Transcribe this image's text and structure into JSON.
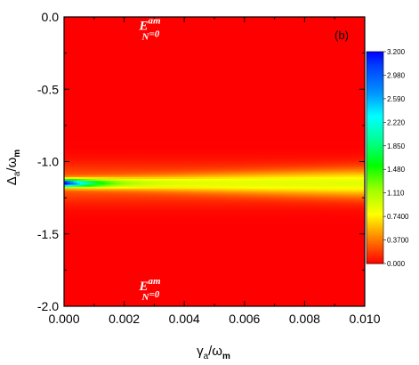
{
  "chart_data": {
    "type": "heatmap",
    "panel_label": "(b)",
    "xlabel": {
      "main": "γ",
      "sub": "a",
      "sep": "/ω",
      "sub2": "m"
    },
    "ylabel": {
      "main": "Δ",
      "sub": "a",
      "sep": "/ω",
      "sub2": "m"
    },
    "xlim": [
      0.0,
      0.01
    ],
    "ylim": [
      -2.0,
      0.0
    ],
    "x_ticks": [
      "0.000",
      "0.002",
      "0.004",
      "0.006",
      "0.008",
      "0.010"
    ],
    "y_ticks": [
      "0.0",
      "-0.5",
      "-1.0",
      "-1.5",
      "-2.0"
    ],
    "x_tick_values": [
      0.0,
      0.002,
      0.004,
      0.006,
      0.008,
      0.01
    ],
    "y_tick_values": [
      0.0,
      -0.5,
      -1.0,
      -1.5,
      -2.0
    ],
    "colorbar": {
      "min": 0.0,
      "max": 3.2,
      "labels": [
        "3.200",
        "2.980",
        "2.590",
        "2.220",
        "1.850",
        "1.480",
        "1.110",
        "0.7400",
        "0.3700",
        "0.000"
      ],
      "stops": [
        {
          "v": 0.0,
          "color": "#ff0000"
        },
        {
          "v": 0.37,
          "color": "#ff7f00"
        },
        {
          "v": 0.74,
          "color": "#ffff00"
        },
        {
          "v": 1.11,
          "color": "#a0ff00"
        },
        {
          "v": 1.48,
          "color": "#00ff00"
        },
        {
          "v": 1.85,
          "color": "#00ff90"
        },
        {
          "v": 2.22,
          "color": "#00ffff"
        },
        {
          "v": 2.59,
          "color": "#0090ff"
        },
        {
          "v": 2.98,
          "color": "#0040ff"
        },
        {
          "v": 3.2,
          "color": "#0000ff"
        }
      ]
    },
    "ridge": {
      "center_y": -1.15,
      "peak_value": 3.2,
      "base_width": 0.018,
      "width_growth": 2.5,
      "decay_scale": 0.0009,
      "floor_amplitude": 0.55,
      "floor_width": 0.09
    },
    "annotations": [
      {
        "base": "E",
        "sub": "N",
        "sup": "am",
        "suffix": "=0",
        "x": 0.0025,
        "y": -0.1
      },
      {
        "base": "E",
        "sub": "N",
        "sup": "am",
        "suffix": "=0",
        "x": 0.0025,
        "y": -1.9
      }
    ]
  }
}
